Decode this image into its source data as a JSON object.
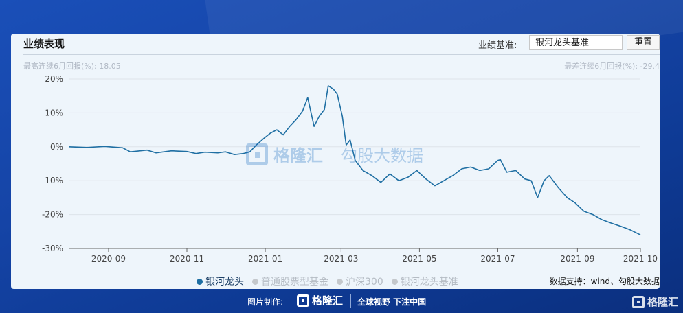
{
  "header": {
    "title": "业绩表现",
    "benchmark_label": "业绩基准:",
    "benchmark_value": "银河龙头基准",
    "reset_label": "重置"
  },
  "stats": {
    "best": "最高连续6月回报(%):  18.05",
    "worst": "最差连续6月回报(%):  -29.4"
  },
  "watermark": {
    "brand": "格隆汇",
    "brand2": "勾股大数据"
  },
  "source": "数据支持：wind、勾股大数据",
  "footer": {
    "made_by": "图片制作:",
    "logo": "格隆汇",
    "slogan": "全球视野 下注中国",
    "logo_right": "格隆汇"
  },
  "colors": {
    "line": "#1f6fa3",
    "inactive": "#c4c8cc"
  },
  "chart_data": {
    "type": "line",
    "ylim": [
      -30,
      20
    ],
    "yticks": [
      20,
      10,
      0,
      -10,
      -20,
      -30
    ],
    "ytick_labels": [
      "20%",
      "10%",
      "0%",
      "-10%",
      "-20%",
      "-30%"
    ],
    "xlim": [
      "2020-08-01",
      "2021-10-20"
    ],
    "xticks": [
      "2020-09-01",
      "2020-11-01",
      "2021-01-01",
      "2021-03-01",
      "2021-05-01",
      "2021-07-01",
      "2021-09-01",
      "2021-10-20"
    ],
    "xtick_labels": [
      "2020-09",
      "2020-11",
      "2021-01",
      "2021-03",
      "2021-05",
      "2021-07",
      "2021-09",
      "2021-10"
    ],
    "grid": "horizontal",
    "legend": [
      {
        "name": "银河龙头",
        "active": true
      },
      {
        "name": "普通股票型基金",
        "active": false
      },
      {
        "name": "沪深300",
        "active": false
      },
      {
        "name": "银河龙头基准",
        "active": false
      }
    ],
    "series": [
      {
        "name": "银河龙头",
        "points": [
          [
            "2020-08-01",
            0.0
          ],
          [
            "2020-08-15",
            -0.2
          ],
          [
            "2020-08-29",
            0.1
          ],
          [
            "2020-09-12",
            -0.3
          ],
          [
            "2020-09-18",
            -1.5
          ],
          [
            "2020-10-01",
            -1.0
          ],
          [
            "2020-10-08",
            -1.8
          ],
          [
            "2020-10-20",
            -1.2
          ],
          [
            "2020-11-01",
            -1.4
          ],
          [
            "2020-11-08",
            -2.0
          ],
          [
            "2020-11-15",
            -1.6
          ],
          [
            "2020-11-25",
            -1.8
          ],
          [
            "2020-12-01",
            -1.5
          ],
          [
            "2020-12-08",
            -2.3
          ],
          [
            "2020-12-15",
            -2.0
          ],
          [
            "2020-12-20",
            -1.5
          ],
          [
            "2020-12-25",
            0.5
          ],
          [
            "2020-12-31",
            2.5
          ],
          [
            "2021-01-05",
            4.0
          ],
          [
            "2021-01-10",
            5.0
          ],
          [
            "2021-01-15",
            3.5
          ],
          [
            "2021-01-20",
            6.0
          ],
          [
            "2021-01-25",
            8.0
          ],
          [
            "2021-01-30",
            10.5
          ],
          [
            "2021-02-03",
            14.5
          ],
          [
            "2021-02-08",
            6.0
          ],
          [
            "2021-02-12",
            9.0
          ],
          [
            "2021-02-16",
            11.0
          ],
          [
            "2021-02-19",
            18.0
          ],
          [
            "2021-02-23",
            17.0
          ],
          [
            "2021-02-26",
            15.5
          ],
          [
            "2021-03-02",
            9.0
          ],
          [
            "2021-03-05",
            0.5
          ],
          [
            "2021-03-08",
            2.0
          ],
          [
            "2021-03-12",
            -4.0
          ],
          [
            "2021-03-18",
            -7.0
          ],
          [
            "2021-03-25",
            -8.5
          ],
          [
            "2021-04-01",
            -10.5
          ],
          [
            "2021-04-08",
            -8.0
          ],
          [
            "2021-04-15",
            -10.0
          ],
          [
            "2021-04-22",
            -9.0
          ],
          [
            "2021-04-29",
            -7.0
          ],
          [
            "2021-05-06",
            -9.5
          ],
          [
            "2021-05-13",
            -11.5
          ],
          [
            "2021-05-20",
            -10.0
          ],
          [
            "2021-05-27",
            -8.5
          ],
          [
            "2021-06-03",
            -6.5
          ],
          [
            "2021-06-10",
            -6.0
          ],
          [
            "2021-06-17",
            -7.0
          ],
          [
            "2021-06-24",
            -6.5
          ],
          [
            "2021-07-01",
            -4.0
          ],
          [
            "2021-07-03",
            -3.8
          ],
          [
            "2021-07-08",
            -7.5
          ],
          [
            "2021-07-15",
            -7.0
          ],
          [
            "2021-07-22",
            -9.5
          ],
          [
            "2021-07-27",
            -10.0
          ],
          [
            "2021-08-01",
            -15.0
          ],
          [
            "2021-08-06",
            -10.0
          ],
          [
            "2021-08-10",
            -8.5
          ],
          [
            "2021-08-17",
            -12.0
          ],
          [
            "2021-08-24",
            -15.0
          ],
          [
            "2021-08-30",
            -16.5
          ],
          [
            "2021-09-06",
            -19.0
          ],
          [
            "2021-09-13",
            -20.0
          ],
          [
            "2021-09-20",
            -21.5
          ],
          [
            "2021-09-27",
            -22.5
          ],
          [
            "2021-10-05",
            -23.5
          ],
          [
            "2021-10-12",
            -24.5
          ],
          [
            "2021-10-20",
            -26.0
          ]
        ]
      }
    ]
  }
}
